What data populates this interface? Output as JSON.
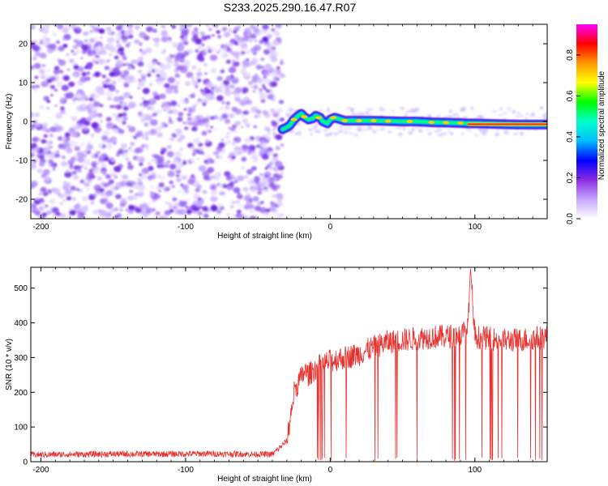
{
  "title": "S233.2025.290.16.47.R07",
  "chart_data": [
    {
      "type": "heatmap",
      "xlabel": "Height of straight line (km)",
      "ylabel": "Frequency (Hz)",
      "xlim": [
        -207,
        150
      ],
      "ylim": [
        -25,
        25
      ],
      "xticks": [
        -200,
        -100,
        0,
        100
      ],
      "yticks": [
        -20,
        -10,
        0,
        10,
        20
      ],
      "colorbar": {
        "label": "Normalized spectral amplitude",
        "ticks": [
          "0.0",
          "0.2",
          "0.4",
          "0.6",
          "0.8"
        ],
        "range": [
          0,
          0.95
        ],
        "colors": [
          "#ffffff",
          "#c6a6ff",
          "#8a2be2",
          "#0000ff",
          "#00bfff",
          "#00ffcc",
          "#00ff00",
          "#ffff00",
          "#ff9900",
          "#ff0000",
          "#ff00ff"
        ]
      },
      "noise_region_x": [
        -207,
        -33
      ],
      "signal_track": {
        "x": [
          -33,
          -30,
          -28,
          -25,
          -22,
          -20,
          -18,
          -15,
          -12,
          -10,
          -7,
          -5,
          -2,
          0,
          3,
          5,
          10,
          20,
          30,
          40,
          50,
          60,
          70,
          80,
          90,
          95,
          100,
          110,
          120,
          130,
          140,
          150
        ],
        "y": [
          -2,
          -1.5,
          -1,
          0.5,
          1.5,
          2,
          1.2,
          0.5,
          0.8,
          1.5,
          1,
          0,
          -0.5,
          0.5,
          1,
          0.8,
          0.2,
          0.2,
          0.2,
          0.1,
          0,
          0,
          -0.2,
          -0.3,
          -0.4,
          -0.5,
          -0.5,
          -0.6,
          -0.7,
          -0.8,
          -0.8,
          -0.8
        ]
      }
    },
    {
      "type": "line",
      "xlabel": "Height of straight line (km)",
      "ylabel": "SNR (10 * v/v)",
      "xlim": [
        -207,
        150
      ],
      "ylim": [
        0,
        560
      ],
      "xticks": [
        -200,
        -100,
        0,
        100
      ],
      "yticks": [
        0,
        100,
        200,
        300,
        400,
        500
      ],
      "color": "#e8302e",
      "series": [
        {
          "x": [
            -207,
            -180,
            -150,
            -120,
            -90,
            -60,
            -40,
            -30,
            -25,
            -22,
            -20,
            -18,
            -15,
            -10,
            -5,
            0,
            5,
            10,
            20,
            30,
            40,
            50,
            60,
            70,
            80,
            90,
            95,
            97,
            100,
            110,
            120,
            130,
            140,
            150
          ],
          "values": [
            20,
            21,
            22,
            22,
            23,
            22,
            21,
            60,
            200,
            230,
            240,
            260,
            250,
            270,
            280,
            290,
            295,
            300,
            310,
            330,
            345,
            350,
            355,
            360,
            360,
            365,
            380,
            560,
            360,
            355,
            350,
            350,
            355,
            360
          ]
        }
      ]
    }
  ]
}
